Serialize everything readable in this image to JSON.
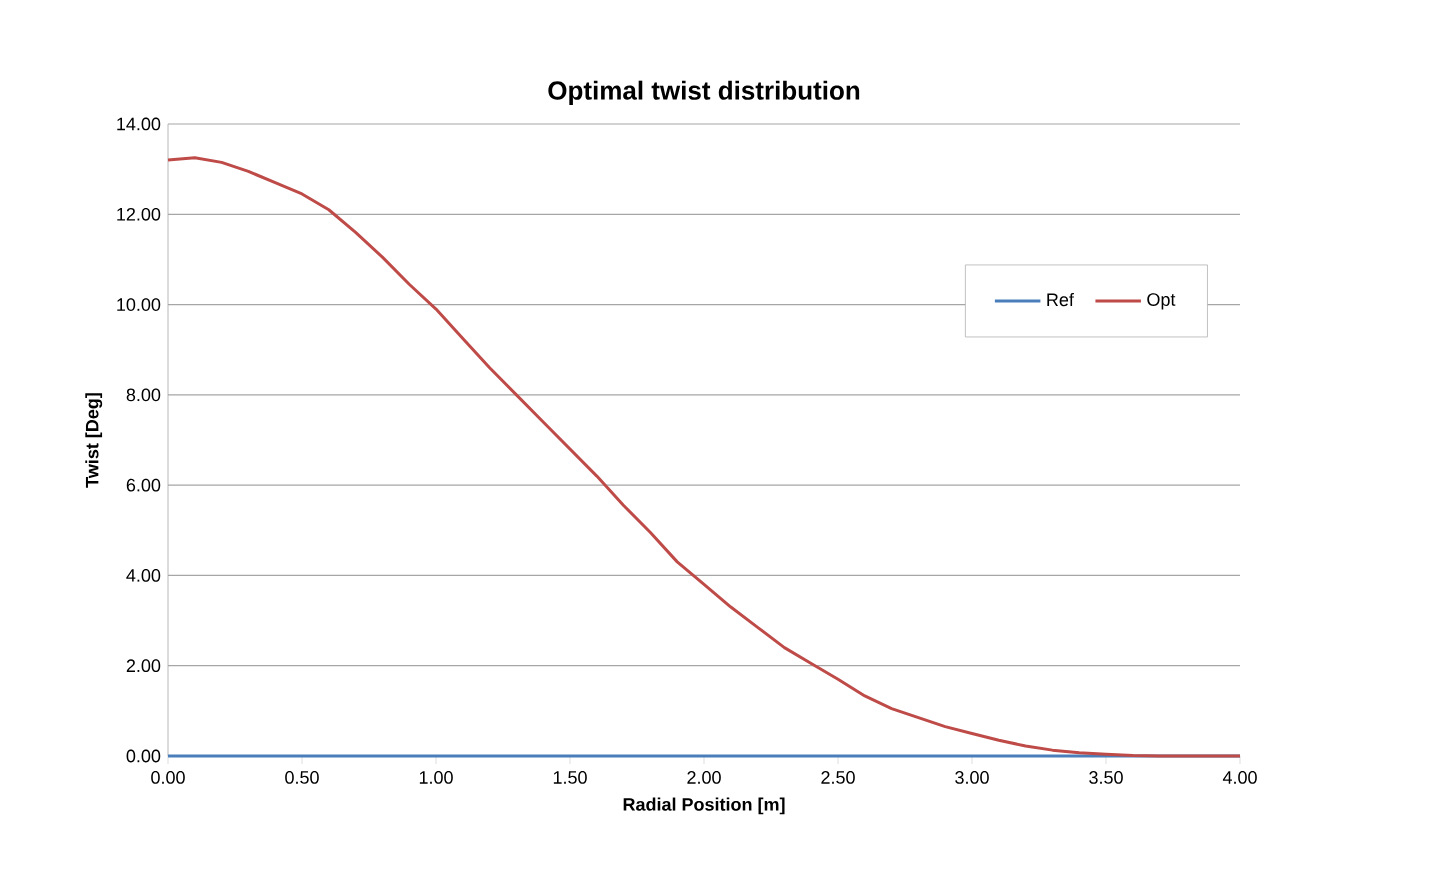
{
  "chart_data": {
    "type": "line",
    "title": "Optimal  twist distribution",
    "xlabel": "Radial Position [m]",
    "ylabel": "Twist [Deg]",
    "xlim": [
      0,
      4
    ],
    "xticks": [
      {
        "value": 0,
        "label": "0.00"
      },
      {
        "value": 0.5,
        "label": "0.50"
      },
      {
        "value": 1,
        "label": "1.00"
      },
      {
        "value": 1.5,
        "label": "1.50"
      },
      {
        "value": 2,
        "label": "2.00"
      },
      {
        "value": 2.5,
        "label": "2.50"
      },
      {
        "value": 3,
        "label": "3.00"
      },
      {
        "value": 3.5,
        "label": "3.50"
      },
      {
        "value": 4,
        "label": "4.00"
      }
    ],
    "ylim": [
      0,
      14
    ],
    "yticks": [
      {
        "value": 0,
        "label": "0.00"
      },
      {
        "value": 2,
        "label": "2.00"
      },
      {
        "value": 4,
        "label": "4.00"
      },
      {
        "value": 6,
        "label": "6.00"
      },
      {
        "value": 8,
        "label": "8.00"
      },
      {
        "value": 10,
        "label": "10.00"
      },
      {
        "value": 12,
        "label": "12.00"
      },
      {
        "value": 14,
        "label": "14.00"
      }
    ],
    "grid": "y",
    "legend": "right",
    "marker": "none",
    "line_style": "solid",
    "series": [
      {
        "name": "Ref",
        "color": "#4a7ebb",
        "x": [
          0,
          0.5,
          1,
          1.5,
          2,
          2.5,
          3,
          3.5,
          4
        ],
        "values": [
          0,
          0,
          0,
          0,
          0,
          0,
          0,
          0,
          0
        ]
      },
      {
        "name": "Opt",
        "color": "#be4b48",
        "x": [
          0,
          0.1,
          0.2,
          0.3,
          0.4,
          0.5,
          0.6,
          0.7,
          0.8,
          0.9,
          1.0,
          1.1,
          1.2,
          1.3,
          1.4,
          1.5,
          1.6,
          1.7,
          1.8,
          1.9,
          2.0,
          2.1,
          2.2,
          2.3,
          2.4,
          2.5,
          2.6,
          2.7,
          2.8,
          2.9,
          3.0,
          3.1,
          3.2,
          3.3,
          3.4,
          3.5,
          3.6,
          3.7,
          4.0
        ],
        "values": [
          13.2,
          13.25,
          13.15,
          12.95,
          12.7,
          12.45,
          12.1,
          11.6,
          11.05,
          10.45,
          9.9,
          9.25,
          8.6,
          8.0,
          7.4,
          6.8,
          6.2,
          5.55,
          4.95,
          4.3,
          3.8,
          3.3,
          2.85,
          2.4,
          2.05,
          1.7,
          1.33,
          1.05,
          0.85,
          0.65,
          0.5,
          0.35,
          0.22,
          0.13,
          0.07,
          0.04,
          0.01,
          0,
          0
        ]
      }
    ]
  }
}
